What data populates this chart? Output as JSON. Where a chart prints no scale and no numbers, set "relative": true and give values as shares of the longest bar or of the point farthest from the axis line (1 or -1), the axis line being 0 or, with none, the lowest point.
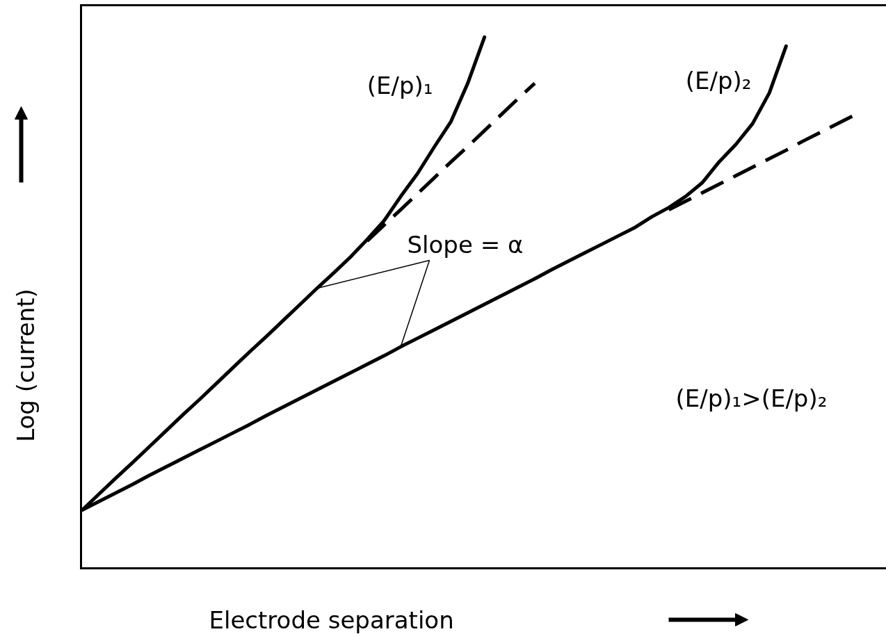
{
  "chart_data": {
    "type": "line",
    "relative": true,
    "xlabel": "Electrode separation",
    "ylabel": "Log (current)",
    "categories": [
      null,
      null,
      null,
      null,
      null,
      null,
      null,
      null,
      null,
      null,
      null,
      null,
      null,
      null,
      null,
      null,
      null,
      null,
      null,
      null,
      null,
      null,
      null,
      null,
      null,
      null,
      null,
      null,
      null,
      null,
      null,
      null,
      null,
      null,
      null,
      null,
      null,
      null,
      null,
      null,
      null,
      null,
      null,
      null,
      null,
      null,
      null,
      null
    ],
    "series": [
      {
        "name": "(E/p)₁",
        "color": "#000000",
        "line_style": "solid",
        "values": [
          0.11,
          0.14,
          0.17,
          0.199,
          0.229,
          0.259,
          0.289,
          0.318,
          0.348,
          0.378,
          0.408,
          0.437,
          0.467,
          0.497,
          0.527,
          0.556,
          0.586,
          0.619,
          0.654,
          0.7,
          0.743,
          0.793,
          0.841,
          0.913,
          1.0,
          null,
          null,
          null,
          null,
          null,
          null,
          null,
          null,
          null,
          null,
          null,
          null,
          null,
          null,
          null,
          null,
          null,
          null,
          null,
          null,
          null,
          null,
          null
        ]
      },
      {
        "color": "#000000",
        "line_style": "dashed",
        "values": [
          null,
          null,
          null,
          null,
          null,
          null,
          null,
          null,
          null,
          null,
          null,
          null,
          null,
          null,
          null,
          null,
          null,
          0.616,
          0.646,
          0.675,
          0.705,
          0.735,
          0.765,
          0.794,
          0.824,
          0.854,
          0.884,
          0.913,
          null,
          null,
          null,
          null,
          null,
          null,
          null,
          null,
          null,
          null,
          null,
          null,
          null,
          null,
          null,
          null,
          null,
          null,
          null,
          null
        ]
      },
      {
        "name": "(E/p)₂",
        "color": "#000000",
        "line_style": "solid",
        "values": [
          0.11,
          0.126,
          0.142,
          0.158,
          0.175,
          0.191,
          0.207,
          0.223,
          0.239,
          0.255,
          0.271,
          0.288,
          0.304,
          0.32,
          0.336,
          0.352,
          0.368,
          0.384,
          0.4,
          0.417,
          0.433,
          0.449,
          0.465,
          0.481,
          0.497,
          0.513,
          0.529,
          0.545,
          0.562,
          0.578,
          0.594,
          0.61,
          0.626,
          0.642,
          0.662,
          0.679,
          0.7,
          0.726,
          0.765,
          0.798,
          0.837,
          0.895,
          0.983,
          null,
          null,
          null,
          null,
          null
        ]
      },
      {
        "color": "#000000",
        "line_style": "dashed",
        "values": [
          null,
          null,
          null,
          null,
          null,
          null,
          null,
          null,
          null,
          null,
          null,
          null,
          null,
          null,
          null,
          null,
          null,
          null,
          null,
          null,
          null,
          null,
          null,
          null,
          null,
          null,
          null,
          null,
          null,
          null,
          null,
          null,
          null,
          null,
          null,
          0.675,
          0.691,
          0.707,
          0.723,
          0.739,
          0.755,
          0.771,
          0.787,
          0.804,
          0.82,
          0.836,
          0.852,
          null
        ]
      }
    ],
    "annotations": [
      "Slope = α",
      "(E/p)₁>(E/p)₂"
    ]
  }
}
